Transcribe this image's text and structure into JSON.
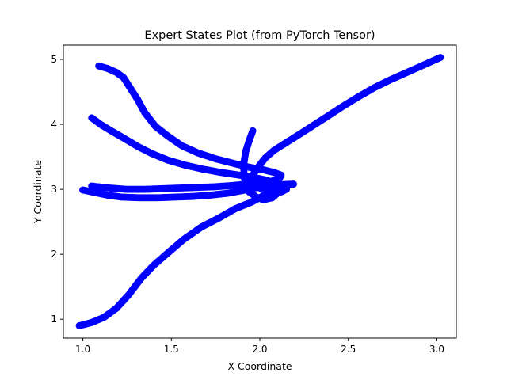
{
  "chart_data": {
    "type": "scatter",
    "title": "Expert States Plot (from PyTorch Tensor)",
    "xlabel": "X Coordinate",
    "ylabel": "Y Coordinate",
    "xlim": [
      0.89,
      3.11
    ],
    "ylim": [
      0.71,
      5.22
    ],
    "x_ticks": [
      1.0,
      1.5,
      2.0,
      2.5,
      3.0
    ],
    "x_tick_labels": [
      "1.0",
      "1.5",
      "2.0",
      "2.5",
      "3.0"
    ],
    "y_ticks": [
      1,
      2,
      3,
      4,
      5
    ],
    "y_tick_labels": [
      "1",
      "2",
      "3",
      "4",
      "5"
    ],
    "grid": false,
    "marker_color": "#0000ff",
    "trajectories": [
      {
        "points": [
          [
            1.09,
            4.9
          ],
          [
            1.14,
            4.86
          ],
          [
            1.19,
            4.8
          ],
          [
            1.23,
            4.72
          ],
          [
            1.27,
            4.55
          ],
          [
            1.31,
            4.38
          ],
          [
            1.35,
            4.18
          ],
          [
            1.41,
            3.97
          ],
          [
            1.48,
            3.82
          ],
          [
            1.56,
            3.67
          ],
          [
            1.65,
            3.56
          ],
          [
            1.75,
            3.47
          ],
          [
            1.85,
            3.4
          ],
          [
            1.94,
            3.34
          ],
          [
            2.02,
            3.3
          ],
          [
            2.08,
            3.26
          ],
          [
            2.12,
            3.22
          ],
          [
            2.11,
            3.16
          ],
          [
            2.06,
            3.12
          ],
          [
            2.0,
            3.07
          ]
        ]
      },
      {
        "points": [
          [
            1.05,
            4.1
          ],
          [
            1.1,
            4.0
          ],
          [
            1.16,
            3.9
          ],
          [
            1.23,
            3.79
          ],
          [
            1.31,
            3.66
          ],
          [
            1.39,
            3.55
          ],
          [
            1.48,
            3.45
          ],
          [
            1.58,
            3.37
          ],
          [
            1.68,
            3.31
          ],
          [
            1.78,
            3.26
          ],
          [
            1.88,
            3.22
          ],
          [
            1.97,
            3.18
          ],
          [
            2.04,
            3.14
          ],
          [
            2.08,
            3.09
          ],
          [
            2.06,
            3.04
          ],
          [
            2.01,
            3.0
          ]
        ]
      },
      {
        "points": [
          [
            1.05,
            3.05
          ],
          [
            1.15,
            3.02
          ],
          [
            1.25,
            3.0
          ],
          [
            1.35,
            3.0
          ],
          [
            1.45,
            3.01
          ],
          [
            1.55,
            3.02
          ],
          [
            1.65,
            3.03
          ],
          [
            1.75,
            3.04
          ],
          [
            1.85,
            3.06
          ],
          [
            1.93,
            3.08
          ],
          [
            2.0,
            3.09
          ],
          [
            2.07,
            3.08
          ],
          [
            2.12,
            3.05
          ],
          [
            2.15,
            3.0
          ],
          [
            2.12,
            2.96
          ],
          [
            2.06,
            2.94
          ]
        ]
      },
      {
        "points": [
          [
            1.0,
            2.99
          ],
          [
            1.07,
            2.95
          ],
          [
            1.14,
            2.91
          ],
          [
            1.22,
            2.88
          ],
          [
            1.32,
            2.87
          ],
          [
            1.42,
            2.87
          ],
          [
            1.52,
            2.88
          ],
          [
            1.62,
            2.89
          ],
          [
            1.72,
            2.91
          ],
          [
            1.82,
            2.94
          ],
          [
            1.9,
            2.98
          ],
          [
            1.97,
            3.02
          ],
          [
            2.04,
            3.05
          ],
          [
            2.11,
            3.07
          ],
          [
            2.19,
            3.08
          ]
        ]
      },
      {
        "points": [
          [
            1.96,
            3.9
          ],
          [
            1.94,
            3.75
          ],
          [
            1.92,
            3.58
          ],
          [
            1.91,
            3.4
          ],
          [
            1.91,
            3.22
          ],
          [
            1.92,
            3.07
          ],
          [
            1.94,
            2.96
          ],
          [
            1.98,
            2.88
          ],
          [
            2.02,
            2.84
          ],
          [
            2.07,
            2.87
          ],
          [
            2.1,
            2.94
          ],
          [
            2.1,
            3.02
          ],
          [
            2.06,
            3.08
          ],
          [
            2.0,
            3.1
          ],
          [
            1.94,
            3.07
          ],
          [
            1.9,
            3.0
          ]
        ]
      },
      {
        "points": [
          [
            1.9,
            3.0
          ],
          [
            1.93,
            3.1
          ],
          [
            1.96,
            3.22
          ],
          [
            1.99,
            3.34
          ],
          [
            2.03,
            3.48
          ],
          [
            2.08,
            3.6
          ],
          [
            2.15,
            3.72
          ],
          [
            2.22,
            3.84
          ],
          [
            2.3,
            3.98
          ],
          [
            2.38,
            4.12
          ],
          [
            2.47,
            4.28
          ],
          [
            2.56,
            4.43
          ],
          [
            2.65,
            4.57
          ],
          [
            2.74,
            4.69
          ],
          [
            2.84,
            4.81
          ],
          [
            2.93,
            4.92
          ],
          [
            3.02,
            5.03
          ]
        ]
      },
      {
        "points": [
          [
            2.12,
            3.06
          ],
          [
            2.08,
            2.98
          ],
          [
            2.02,
            2.9
          ],
          [
            1.95,
            2.8
          ],
          [
            1.86,
            2.7
          ],
          [
            1.77,
            2.56
          ],
          [
            1.67,
            2.42
          ],
          [
            1.57,
            2.23
          ],
          [
            1.48,
            2.02
          ],
          [
            1.4,
            1.83
          ],
          [
            1.33,
            1.63
          ],
          [
            1.26,
            1.38
          ],
          [
            1.19,
            1.17
          ],
          [
            1.12,
            1.03
          ],
          [
            1.05,
            0.95
          ],
          [
            0.98,
            0.9
          ]
        ]
      }
    ]
  }
}
